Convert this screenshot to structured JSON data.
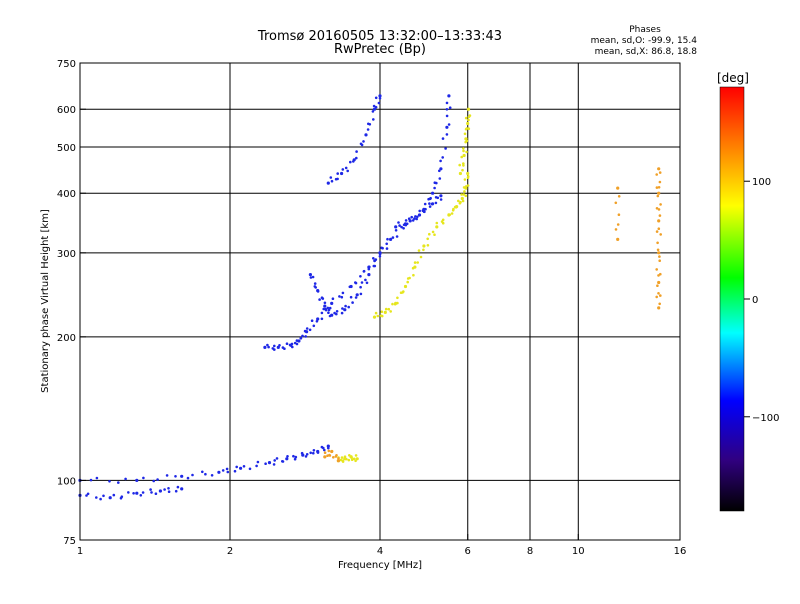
{
  "chart_data": {
    "type": "scatter",
    "title": "Tromsø 20160505 13:32:00–13:33:43",
    "subtitle": "RwPretec (Bp)",
    "xlabel": "Frequency [MHz]",
    "ylabel": "Stationary phase Virtual Height [km]",
    "x_scale": "log",
    "y_scale": "log",
    "xlim": [
      1,
      16
    ],
    "ylim": [
      75,
      750
    ],
    "x_ticks": [
      1,
      2,
      4,
      6,
      8,
      10,
      16
    ],
    "y_ticks": [
      75,
      100,
      200,
      300,
      400,
      500,
      600,
      750
    ],
    "x_gridlines": [
      2,
      4,
      6,
      8,
      10
    ],
    "y_gridlines": [
      100,
      200,
      300,
      400,
      500,
      600
    ],
    "grid": true,
    "stats_header": "Phases",
    "stats": [
      "mean, sd,O: -99.9, 15.4",
      "mean, sd,X:  86.8, 18.8"
    ],
    "colorbar": {
      "label": "[deg]",
      "min": -180,
      "max": 180,
      "ticks": [
        100,
        0,
        -100
      ],
      "tick_labels": [
        "100",
        "0",
        "−100"
      ]
    },
    "series": [
      {
        "phase_deg": -100,
        "color": "#1e28e6",
        "traces": [
          {
            "x": [
              1.0,
              1.3,
              1.6,
              1.9,
              2.1,
              2.4,
              2.6,
              2.8,
              3.0,
              3.15
            ],
            "y": [
              100,
              100,
              102,
              104,
              106,
              109,
              111,
              113,
              115,
              118
            ]
          },
          {
            "x": [
              1.0,
              1.15,
              1.3,
              1.45,
              1.6
            ],
            "y": [
              93,
              92,
              94,
              95,
              96
            ]
          },
          {
            "x": [
              2.35,
              2.5,
              2.65,
              2.75,
              2.85,
              3.0,
              3.2,
              3.5,
              3.8,
              4.0,
              4.2,
              4.5,
              4.8,
              5.1,
              5.3
            ],
            "y": [
              190,
              190,
              192,
              196,
              205,
              218,
              235,
              255,
              280,
              300,
              320,
              345,
              360,
              380,
              395
            ]
          },
          {
            "x": [
              2.9,
              3.0,
              3.1,
              3.2,
              3.4,
              3.6,
              3.8,
              4.0
            ],
            "y": [
              270,
              250,
              232,
              222,
              228,
              245,
              270,
              300
            ]
          },
          {
            "x": [
              3.15,
              3.35,
              3.55,
              3.75,
              3.9,
              4.0
            ],
            "y": [
              420,
              440,
              470,
              530,
              600,
              640
            ]
          },
          {
            "x": [
              4.3,
              4.6,
              4.9,
              5.1,
              5.3,
              5.45,
              5.5
            ],
            "y": [
              340,
              350,
              370,
              400,
              450,
              550,
              640
            ]
          }
        ]
      },
      {
        "phase_deg": 100,
        "color": "#e6e61e",
        "traces": [
          {
            "x": [
              3.9,
              4.1,
              4.3,
              4.5,
              4.7,
              4.9,
              5.2,
              5.5,
              5.7,
              5.85,
              5.95,
              6.0
            ],
            "y": [
              220,
              225,
              235,
              255,
              280,
              310,
              340,
              360,
              375,
              390,
              410,
              440
            ]
          },
          {
            "x": [
              5.8,
              5.9,
              5.95,
              6.0,
              6.02
            ],
            "y": [
              440,
              480,
              520,
              560,
              600
            ]
          },
          {
            "x": [
              3.3,
              3.4,
              3.5,
              3.6
            ],
            "y": [
              110,
              111,
              112,
              111
            ]
          }
        ]
      },
      {
        "phase_deg": 140,
        "color": "#f0a028",
        "traces": [
          {
            "x": [
              14.5,
              14.5,
              14.5,
              14.5,
              14.5,
              14.5
            ],
            "y": [
              450,
              400,
              350,
              300,
              260,
              230
            ]
          },
          {
            "x": [
              12.0,
              12.0
            ],
            "y": [
              410,
              320
            ]
          },
          {
            "x": [
              3.1,
              3.2,
              3.3
            ],
            "y": [
              112,
              115,
              110
            ]
          }
        ]
      }
    ]
  }
}
